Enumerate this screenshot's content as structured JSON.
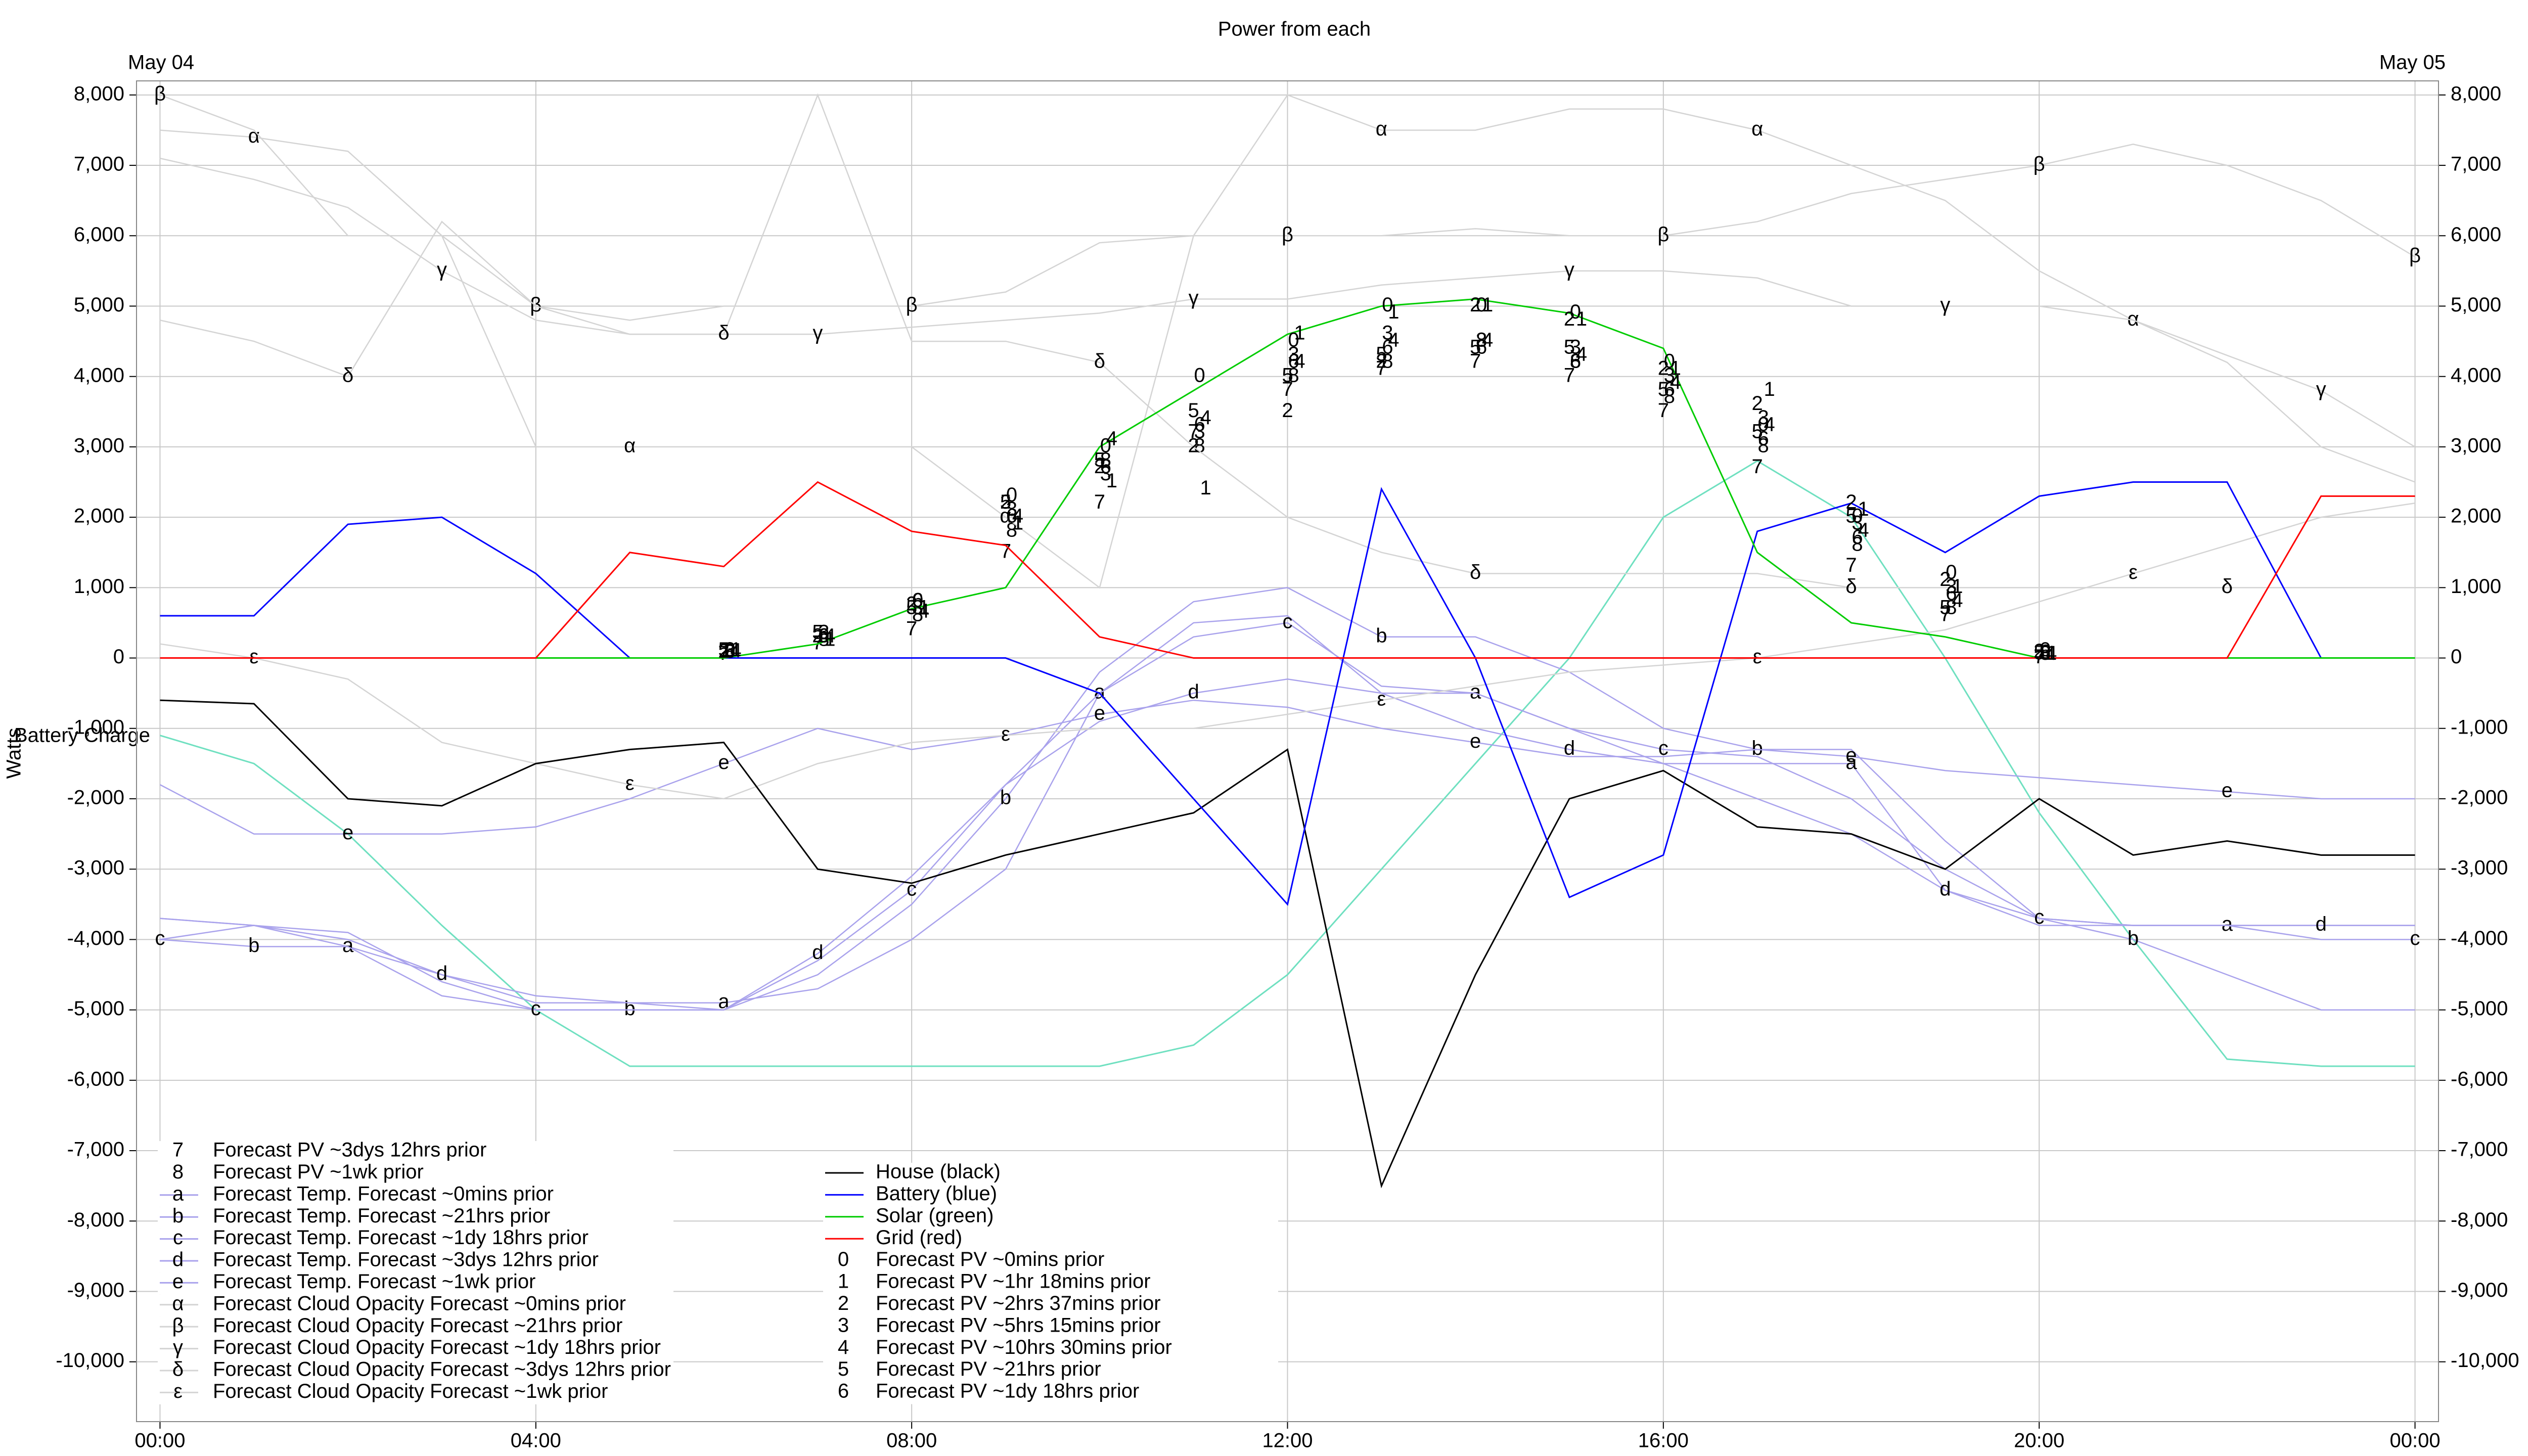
{
  "chart_data": {
    "type": "line",
    "title": "Power from each",
    "ylabel": "Watts",
    "x_start_label": "May 04",
    "x_end_label": "May 05",
    "xlim": [
      -0.25,
      24.25
    ],
    "ylim": [
      -10850,
      8200
    ],
    "grid": true,
    "xticks": [
      {
        "value": 0,
        "label": "00:00"
      },
      {
        "value": 4,
        "label": "04:00"
      },
      {
        "value": 8,
        "label": "08:00"
      },
      {
        "value": 12,
        "label": "12:00"
      },
      {
        "value": 16,
        "label": "16:00"
      },
      {
        "value": 20,
        "label": "20:00"
      },
      {
        "value": 24,
        "label": "00:00"
      }
    ],
    "yticks": [
      {
        "value": -10000,
        "label": "-10,000"
      },
      {
        "value": -9000,
        "label": "-9,000"
      },
      {
        "value": -8000,
        "label": "-8,000"
      },
      {
        "value": -7000,
        "label": "-7,000"
      },
      {
        "value": -6000,
        "label": "-6,000"
      },
      {
        "value": -5000,
        "label": "-5,000"
      },
      {
        "value": -4000,
        "label": "-4,000"
      },
      {
        "value": -3000,
        "label": "-3,000"
      },
      {
        "value": -2000,
        "label": "-2,000"
      },
      {
        "value": -1000,
        "label": "-1,000"
      },
      0,
      {
        "value": 1000,
        "label": "1,000"
      },
      {
        "value": 2000,
        "label": "2,000"
      },
      {
        "value": 3000,
        "label": "3,000"
      },
      {
        "value": 4000,
        "label": "4,000"
      },
      {
        "value": 5000,
        "label": "5,000"
      },
      {
        "value": 6000,
        "label": "6,000"
      },
      {
        "value": 7000,
        "label": "7,000"
      },
      {
        "value": 8000,
        "label": "8,000"
      }
    ],
    "x": [
      0,
      1,
      2,
      3,
      4,
      5,
      6,
      7,
      8,
      9,
      10,
      11,
      12,
      13,
      14,
      15,
      16,
      17,
      18,
      19,
      20,
      21,
      22,
      23,
      24
    ],
    "battery_charge": {
      "label": "Battery Charge",
      "color": "#6fe0c0",
      "values": [
        -1100,
        -1500,
        -2500,
        -3800,
        -5000,
        -5800,
        -5800,
        -5800,
        -5800,
        -5800,
        -5800,
        -5500,
        -4500,
        -3000,
        -1500,
        0,
        2000,
        2800,
        2000,
        0,
        -2200,
        -4000,
        -5700,
        -5800,
        -5800
      ]
    },
    "series": [
      {
        "name": "Forecast PV ~3dys 12hrs prior",
        "symbol": "7",
        "style": "symbol",
        "color": "#000000",
        "values": [
          null,
          null,
          null,
          null,
          null,
          null,
          50,
          200,
          400,
          1500,
          2200,
          3200,
          3800,
          4100,
          4200,
          4000,
          3500,
          2700,
          1300,
          600,
          0,
          null,
          null,
          null,
          null
        ]
      },
      {
        "name": "Forecast PV ~1wk prior",
        "symbol": "8",
        "style": "symbol",
        "color": "#000000",
        "values": [
          null,
          null,
          null,
          null,
          null,
          null,
          70,
          250,
          600,
          1800,
          2800,
          3000,
          4000,
          4200,
          4500,
          4200,
          3700,
          3000,
          1600,
          700,
          50,
          null,
          null,
          null,
          null
        ]
      },
      {
        "name": "Forecast Temp. Forecast ~0mins prior",
        "symbol": "a",
        "style": "line-symbol",
        "color": "#a9a2ec",
        "values": [
          -3700,
          -3800,
          -4100,
          -4500,
          -4900,
          -4900,
          -4900,
          -4700,
          -4000,
          -3000,
          -500,
          500,
          600,
          -500,
          -500,
          -1000,
          -1500,
          -1500,
          -1500,
          -3300,
          -3700,
          -3800,
          -3800,
          -3800,
          -3800
        ]
      },
      {
        "name": "Forecast Temp. Forecast ~21hrs prior",
        "symbol": "b",
        "style": "line-symbol",
        "color": "#a9a2ec",
        "values": [
          -4000,
          -4100,
          -4100,
          -4800,
          -5000,
          -5000,
          -5000,
          -4500,
          -3500,
          -2000,
          -200,
          800,
          1000,
          300,
          300,
          -200,
          -1000,
          -1300,
          -1300,
          -2600,
          -3700,
          -4000,
          -4500,
          -5000,
          -5000
        ]
      },
      {
        "name": "Forecast Temp. Forecast ~1dy 18hrs prior",
        "symbol": "c",
        "style": "line-symbol",
        "color": "#a9a2ec",
        "values": [
          -4000,
          -3800,
          -3900,
          -4600,
          -5000,
          -5000,
          -5000,
          -4300,
          -3300,
          -1800,
          -500,
          300,
          500,
          -400,
          -500,
          -1000,
          -1300,
          -1400,
          -2000,
          -3000,
          -3700,
          -3800,
          -3800,
          -4000,
          -4000
        ]
      },
      {
        "name": "Forecast Temp. Forecast ~3dys 12hrs prior",
        "symbol": "d",
        "style": "line-symbol",
        "color": "#a9a2ec",
        "values": [
          -3700,
          -3800,
          -4000,
          -4500,
          -4800,
          -4900,
          -5000,
          -4200,
          -3100,
          -1800,
          -900,
          -500,
          -300,
          -500,
          -1000,
          -1300,
          -1500,
          -2000,
          -2500,
          -3300,
          -3800,
          -3800,
          -3800,
          -3800,
          -3800
        ]
      },
      {
        "name": "Forecast Temp. Forecast ~1wk prior",
        "symbol": "e",
        "style": "line-symbol",
        "color": "#a9a2ec",
        "values": [
          -1800,
          -2500,
          -2500,
          -2500,
          -2400,
          -2000,
          -1500,
          -1000,
          -1300,
          -1100,
          -800,
          -600,
          -700,
          -1000,
          -1200,
          -1400,
          -1400,
          -1300,
          -1400,
          -1600,
          -1700,
          -1800,
          -1900,
          -2000,
          -2000
        ]
      },
      {
        "name": "Forecast Cloud Opacity Forecast ~0mins prior",
        "symbol": "α",
        "style": "line-symbol",
        "color": "#d4d4d4",
        "values": [
          7500,
          7400,
          7200,
          6000,
          3000,
          3000,
          3000,
          3000,
          3000,
          2000,
          1000,
          6000,
          8000,
          7500,
          7500,
          7800,
          7800,
          7500,
          7000,
          6500,
          5500,
          4800,
          4200,
          3000,
          2500
        ]
      },
      {
        "name": "Forecast Cloud Opacity Forecast ~21hrs prior",
        "symbol": "β",
        "style": "line-symbol",
        "color": "#d4d4d4",
        "values": [
          8000,
          7500,
          6000,
          6000,
          5000,
          4800,
          5000,
          5000,
          5000,
          5200,
          5900,
          6000,
          6000,
          6000,
          6100,
          6000,
          6000,
          6200,
          6600,
          6800,
          7000,
          7300,
          7000,
          6500,
          5700
        ]
      },
      {
        "name": "Forecast Cloud Opacity Forecast ~1dy 18hrs prior",
        "symbol": "γ",
        "style": "line-symbol",
        "color": "#d4d4d4",
        "values": [
          7100,
          6800,
          6400,
          5500,
          4800,
          4600,
          4600,
          4600,
          4700,
          4800,
          4900,
          5100,
          5100,
          5300,
          5400,
          5500,
          5500,
          5400,
          5000,
          5000,
          5000,
          4800,
          4300,
          3800,
          3000
        ]
      },
      {
        "name": "Forecast Cloud Opacity Forecast ~3dys 12hrs prior",
        "symbol": "δ",
        "style": "line-symbol",
        "color": "#d4d4d4",
        "values": [
          4800,
          4500,
          4000,
          6200,
          5000,
          4600,
          4600,
          8000,
          4500,
          4500,
          4200,
          3000,
          2000,
          1500,
          1200,
          1200,
          1200,
          1200,
          1000,
          1000,
          1000,
          1000,
          1000,
          1000,
          1000
        ]
      },
      {
        "name": "Forecast Cloud Opacity Forecast ~1wk prior",
        "symbol": "ε",
        "style": "line-symbol",
        "color": "#d4d4d4",
        "values": [
          200,
          0,
          -300,
          -1200,
          -1500,
          -1800,
          -2000,
          -1500,
          -1200,
          -1100,
          -1000,
          -1000,
          -800,
          -600,
          -400,
          -200,
          -100,
          0,
          200,
          400,
          800,
          1200,
          1600,
          2000,
          2200
        ]
      },
      {
        "name": "House (black)",
        "style": "line",
        "color": "#000000",
        "values": [
          -600,
          -650,
          -2000,
          -2100,
          -1500,
          -1300,
          -1200,
          -3000,
          -3200,
          -2800,
          -2500,
          -2200,
          -1300,
          -7500,
          -4500,
          -2000,
          -1600,
          -2400,
          -2500,
          -3000,
          -2000,
          -2800,
          -2600,
          -2800,
          -2800
        ]
      },
      {
        "name": "Battery (blue)",
        "style": "line",
        "color": "#0000ff",
        "values": [
          600,
          600,
          1900,
          2000,
          1200,
          0,
          0,
          0,
          0,
          0,
          -500,
          -2000,
          -3500,
          2400,
          0,
          -3400,
          -2800,
          1800,
          2200,
          1500,
          2300,
          2500,
          2500,
          0,
          0
        ]
      },
      {
        "name": "Solar (green)",
        "style": "line",
        "color": "#00cc00",
        "values": [
          0,
          0,
          0,
          0,
          0,
          0,
          0,
          200,
          700,
          1000,
          3000,
          3800,
          4600,
          5000,
          5100,
          4900,
          4400,
          1500,
          500,
          300,
          0,
          0,
          0,
          0,
          0
        ]
      },
      {
        "name": "Grid (red)",
        "style": "line",
        "color": "#ff0000",
        "values": [
          0,
          0,
          0,
          0,
          0,
          1500,
          1300,
          2500,
          1800,
          1600,
          300,
          0,
          0,
          0,
          0,
          0,
          0,
          0,
          0,
          0,
          0,
          0,
          0,
          2300,
          2300
        ]
      },
      {
        "name": "Forecast PV ~0mins prior",
        "symbol": "0",
        "style": "symbol",
        "color": "#000000",
        "values": [
          null,
          null,
          null,
          null,
          null,
          null,
          100,
          300,
          800,
          2300,
          3000,
          4000,
          4500,
          5000,
          5000,
          4900,
          4200,
          3300,
          2000,
          1200,
          100,
          null,
          null,
          null,
          null
        ]
      },
      {
        "name": "Forecast PV ~1hr 18mins prior",
        "symbol": "1",
        "style": "symbol",
        "color": "#000000",
        "values": [
          null,
          null,
          null,
          null,
          null,
          null,
          100,
          250,
          700,
          1900,
          2500,
          2400,
          4600,
          4900,
          5000,
          4800,
          4100,
          3800,
          2100,
          1000,
          50,
          null,
          null,
          null,
          null
        ]
      },
      {
        "name": "Forecast PV ~2hrs 37mins prior",
        "symbol": "2",
        "style": "symbol",
        "color": "#000000",
        "values": [
          null,
          null,
          null,
          null,
          null,
          null,
          80,
          300,
          750,
          2200,
          2700,
          3000,
          3500,
          4200,
          5000,
          4800,
          4100,
          3600,
          2200,
          1100,
          80,
          null,
          null,
          null,
          null
        ]
      },
      {
        "name": "Forecast PV ~5hrs 15mins prior",
        "symbol": "3",
        "style": "symbol",
        "color": "#000000",
        "values": [
          null,
          null,
          null,
          null,
          null,
          null,
          100,
          350,
          700,
          2100,
          2600,
          3200,
          4300,
          4600,
          4500,
          4400,
          4000,
          3400,
          1900,
          1000,
          60,
          null,
          null,
          null,
          null
        ]
      },
      {
        "name": "Forecast PV ~10hrs 30mins prior",
        "symbol": "4",
        "style": "symbol",
        "color": "#000000",
        "values": [
          null,
          null,
          null,
          null,
          null,
          null,
          90,
          300,
          650,
          2000,
          3100,
          3400,
          4200,
          4500,
          4500,
          4300,
          3900,
          3300,
          1800,
          800,
          50,
          null,
          null,
          null,
          null
        ]
      },
      {
        "name": "Forecast PV ~21hrs prior",
        "symbol": "5",
        "style": "symbol",
        "color": "#000000",
        "values": [
          null,
          null,
          null,
          null,
          null,
          null,
          100,
          350,
          700,
          2200,
          2800,
          3500,
          4000,
          4300,
          4400,
          4400,
          3800,
          3200,
          2000,
          700,
          60,
          null,
          null,
          null,
          null
        ]
      },
      {
        "name": "Forecast PV ~1dy 18hrs prior",
        "symbol": "6",
        "style": "symbol",
        "color": "#000000",
        "values": [
          null,
          null,
          null,
          null,
          null,
          null,
          80,
          300,
          800,
          2000,
          2700,
          3300,
          4200,
          4400,
          4400,
          4200,
          3800,
          3100,
          1700,
          900,
          70,
          null,
          null,
          null,
          null
        ]
      }
    ]
  }
}
